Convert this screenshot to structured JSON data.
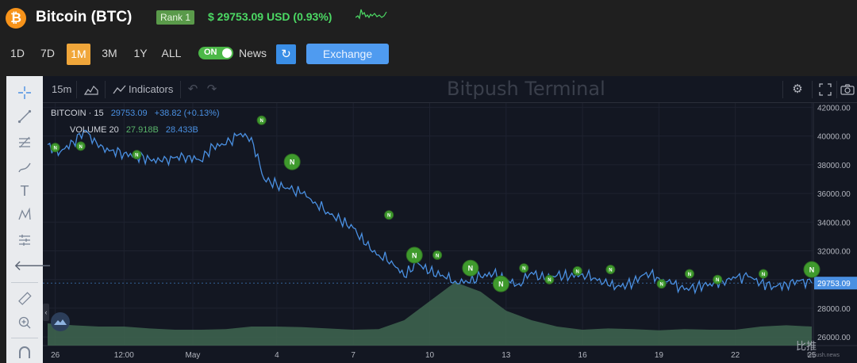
{
  "coin": {
    "logo_glyph": "₿",
    "title": "Bitcoin (BTC)",
    "rank": "Rank 1",
    "price": "$ 29753.09 USD (0.93%)"
  },
  "periods": [
    {
      "label": "1D",
      "active": false
    },
    {
      "label": "7D",
      "active": false
    },
    {
      "label": "1M",
      "active": true
    },
    {
      "label": "3M",
      "active": false
    },
    {
      "label": "1Y",
      "active": false
    },
    {
      "label": "ALL",
      "active": false
    }
  ],
  "news_toggle": {
    "state": "ON",
    "label": "News"
  },
  "refresh_icon": "↻",
  "exchange_button": "Exchange",
  "terminal": {
    "watermark": "Bitpush Terminal",
    "interval": "15m",
    "indicators_label": "Indicators",
    "legend": {
      "symbol": "BITCOIN · 15",
      "price": "29753.09",
      "change": "+38.82 (+0.13%)",
      "volume_label": "VOLUME 20",
      "volume_1": "27.918B",
      "volume_2": "28.433B"
    },
    "brand": "比推",
    "brand_sub": "bitpush.news"
  },
  "colors": {
    "price_green": "#4cd964",
    "line_blue": "#4a90e2",
    "news_marker": "#3f9a2d",
    "volume_fill": "#3f6650",
    "accent_orange": "#f0a63a"
  },
  "chart_data": {
    "type": "line",
    "title": "",
    "y_ticks": [
      "42000.00",
      "40000.00",
      "38000.00",
      "36000.00",
      "34000.00",
      "32000.00",
      "30000.00",
      "28000.00",
      "26000.00"
    ],
    "last_price_label": "29753.09",
    "x_ticks": [
      "26",
      "12:00",
      "May",
      "4",
      "7",
      "10",
      "13",
      "16",
      "19",
      "22",
      "25"
    ],
    "ylim": [
      25400,
      42300
    ],
    "series": [
      {
        "x": [
          0,
          0.5,
          1,
          1.5,
          2,
          2.5,
          3,
          3.5,
          4,
          4.5,
          5,
          5.5,
          6,
          6.5,
          7,
          7.5,
          8,
          8.5,
          9,
          9.5,
          10,
          10.5,
          11,
          11.5,
          12,
          12.5,
          13,
          13.5,
          14,
          14.5,
          15,
          15.5,
          16,
          16.5,
          17,
          17.5,
          18,
          18.5,
          19,
          19.5,
          20,
          20.5,
          21,
          21.5,
          22,
          22.5,
          23,
          23.5,
          24,
          24.5,
          25,
          25.5,
          26,
          26.5,
          27,
          27.5,
          28,
          28.5,
          29,
          29.5,
          30
        ],
        "values": [
          39400,
          38900,
          39600,
          40400,
          39200,
          39000,
          38800,
          38600,
          38400,
          38200,
          38500,
          38600,
          38300,
          39300,
          39400,
          40100,
          39900,
          37000,
          36600,
          36300,
          36000,
          35400,
          34700,
          34100,
          33600,
          32400,
          31700,
          31300,
          30200,
          31200,
          30500,
          30300,
          29900,
          29800,
          30200,
          30400,
          29900,
          29700,
          30500,
          30000,
          30300,
          30200,
          30400,
          30100,
          29600,
          29500,
          29800,
          30500,
          30100,
          29700,
          29300,
          29500,
          29700,
          29900,
          30100,
          30200,
          29800,
          29500,
          29700,
          29900,
          29753
        ]
      }
    ],
    "volume": {
      "x": [
        0,
        1,
        2,
        3,
        4,
        5,
        6,
        7,
        8,
        9,
        10,
        11,
        12,
        13,
        14,
        15,
        16,
        17,
        18,
        19,
        20,
        21,
        22,
        23,
        24,
        25,
        26,
        27,
        28,
        29,
        30
      ],
      "values": [
        0.35,
        0.32,
        0.3,
        0.3,
        0.27,
        0.25,
        0.25,
        0.26,
        0.3,
        0.3,
        0.29,
        0.27,
        0.25,
        0.26,
        0.4,
        0.7,
        1.0,
        0.85,
        0.55,
        0.4,
        0.3,
        0.25,
        0.27,
        0.26,
        0.24,
        0.26,
        0.25,
        0.25,
        0.3,
        0.32,
        0.3
      ]
    },
    "news_markers": [
      {
        "x": 0.3,
        "y": 39200,
        "size": "s"
      },
      {
        "x": 1.3,
        "y": 39300,
        "size": "s"
      },
      {
        "x": 3.5,
        "y": 38700,
        "size": "s"
      },
      {
        "x": 8.4,
        "y": 41100,
        "size": "s"
      },
      {
        "x": 9.6,
        "y": 38200,
        "size": "l"
      },
      {
        "x": 13.4,
        "y": 34500,
        "size": "s"
      },
      {
        "x": 14.4,
        "y": 31700,
        "size": "l"
      },
      {
        "x": 15.3,
        "y": 31700,
        "size": "s"
      },
      {
        "x": 16.6,
        "y": 30800,
        "size": "l"
      },
      {
        "x": 17.8,
        "y": 29700,
        "size": "l"
      },
      {
        "x": 18.7,
        "y": 30800,
        "size": "s"
      },
      {
        "x": 19.7,
        "y": 30000,
        "size": "s"
      },
      {
        "x": 20.8,
        "y": 30600,
        "size": "s"
      },
      {
        "x": 22.1,
        "y": 30700,
        "size": "s"
      },
      {
        "x": 24.1,
        "y": 29700,
        "size": "s"
      },
      {
        "x": 25.2,
        "y": 30400,
        "size": "s"
      },
      {
        "x": 26.3,
        "y": 30000,
        "size": "s"
      },
      {
        "x": 28.1,
        "y": 30400,
        "size": "s"
      },
      {
        "x": 30.0,
        "y": 30700,
        "size": "l"
      }
    ],
    "news_marker_glyph": "N",
    "grid": true
  }
}
